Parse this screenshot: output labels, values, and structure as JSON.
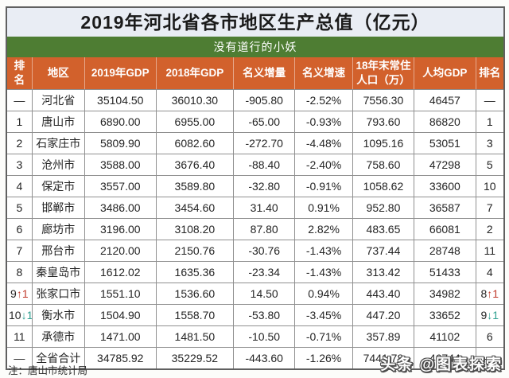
{
  "title": "2019年河北省各市地区生产总值（亿元）",
  "banner": "没有道行的小妖",
  "note": "注：唐山市统计局",
  "watermark": "头条 @图表探索",
  "colors": {
    "header_bg": "#d2612c",
    "banner_bg": "#4e7d33",
    "title_bg": "#e9edf4",
    "gdp_column_text": "#8c7b5d",
    "rank_up": "#c03a2b",
    "rank_down": "#2fa091",
    "grid_border": "#909090"
  },
  "chart_data": {
    "type": "table",
    "title": "2019年河北省各市地区生产总值（亿元）",
    "subtitle": "没有道行的小妖",
    "source_note": "注：唐山市统计局",
    "columns": [
      "排名",
      "地区",
      "2019年GDP",
      "2018年GDP",
      "名义增量",
      "名义增速",
      "18年末常住人口（万）",
      "人均GDP",
      "排名"
    ],
    "col_widths_pct": [
      5,
      10.6,
      14.4,
      15.6,
      12.4,
      11.6,
      12.4,
      12.4,
      5.6
    ],
    "rows": [
      [
        "—",
        "河北省",
        "35104.50",
        "36010.30",
        "-905.80",
        "-2.52%",
        "7556.30",
        "46457",
        "—"
      ],
      [
        "1",
        "唐山市",
        "6890.00",
        "6955.00",
        "-65.00",
        "-0.93%",
        "793.60",
        "86820",
        "1"
      ],
      [
        "2",
        "石家庄市",
        "5809.90",
        "6082.60",
        "-272.70",
        "-4.48%",
        "1095.16",
        "53051",
        "3"
      ],
      [
        "3",
        "沧州市",
        "3588.00",
        "3676.40",
        "-88.40",
        "-2.40%",
        "758.60",
        "47298",
        "5"
      ],
      [
        "4",
        "保定市",
        "3557.00",
        "3589.80",
        "-32.80",
        "-0.91%",
        "1058.62",
        "33600",
        "10"
      ],
      [
        "5",
        "邯郸市",
        "3486.00",
        "3454.60",
        "31.40",
        "0.91%",
        "952.80",
        "36587",
        "7"
      ],
      [
        "6",
        "廊坊市",
        "3196.00",
        "3108.20",
        "87.80",
        "2.82%",
        "483.65",
        "66081",
        "2"
      ],
      [
        "7",
        "邢台市",
        "2120.00",
        "2150.76",
        "-30.76",
        "-1.43%",
        "737.44",
        "28748",
        "11"
      ],
      [
        "8",
        "秦皇岛市",
        "1612.02",
        "1635.36",
        "-23.34",
        "-1.43%",
        "313.42",
        "51433",
        "4"
      ],
      [
        "9↑1",
        "张家口市",
        "1551.10",
        "1536.60",
        "14.50",
        "0.94%",
        "443.40",
        "34982",
        "8↑1"
      ],
      [
        "10↓1",
        "衡水市",
        "1504.90",
        "1558.70",
        "-53.80",
        "-3.45%",
        "447.20",
        "33652",
        "9↓1"
      ],
      [
        "11",
        "承德市",
        "1471.00",
        "1481.50",
        "-10.50",
        "-0.71%",
        "357.89",
        "41102",
        "6"
      ],
      [
        "—",
        "全省合计",
        "34785.92",
        "35229.52",
        "-443.60",
        "-1.26%",
        "7441.78",
        "46744",
        "—"
      ]
    ]
  }
}
